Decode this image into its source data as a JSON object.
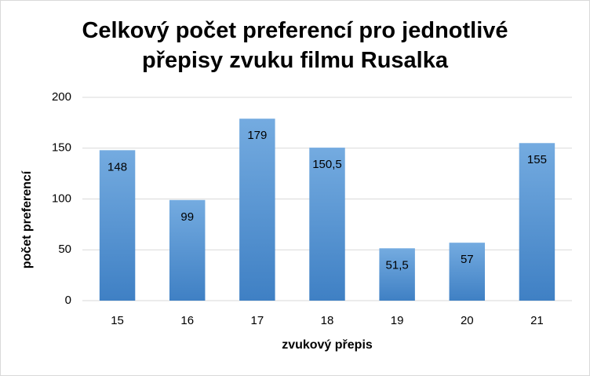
{
  "chart_data": {
    "type": "bar",
    "title": "Celkový počet preferencí pro jednotlivé přepisy zvuku filmu Rusalka",
    "x_label": "zvukový přepis",
    "y_label": "počet preferencí",
    "categories": [
      "15",
      "16",
      "17",
      "18",
      "19",
      "20",
      "21"
    ],
    "values": [
      148,
      99,
      179,
      150.5,
      51.5,
      57,
      155
    ],
    "value_labels": [
      "148",
      "99",
      "179",
      "150,5",
      "51,5",
      "57",
      "155"
    ],
    "color": "#5b9bd5",
    "ylim": [
      0,
      200
    ],
    "yticks": [
      0,
      50,
      100,
      150,
      200
    ],
    "grid": true
  }
}
